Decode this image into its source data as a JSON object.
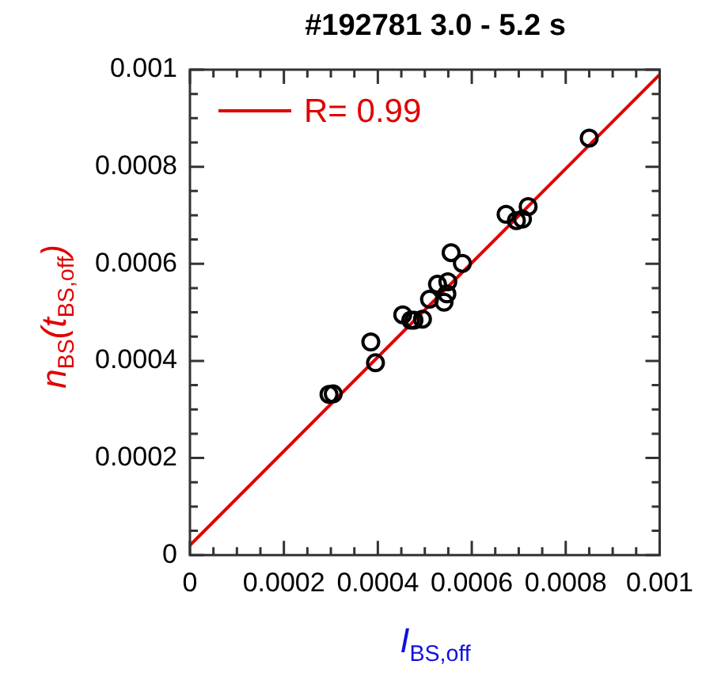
{
  "chart_data": {
    "type": "scatter",
    "title": "#192781 3.0 - 5.2 s",
    "xlabel": "I$_{BS,off}$",
    "ylabel": "n$_{BS}$(t$_{BS,off}$)",
    "xlim": [
      0,
      0.001
    ],
    "ylim": [
      0,
      0.001
    ],
    "xticks": [
      0,
      {
        "value": 5e-05,
        "label": null
      },
      {
        "value": 0.0001,
        "label": null
      },
      {
        "value": 0.00015,
        "label": null
      },
      0.0002,
      {
        "value": 0.00025,
        "label": null
      },
      {
        "value": 0.0003,
        "label": null
      },
      {
        "value": 0.00035,
        "label": null
      },
      0.0004,
      {
        "value": 0.00045,
        "label": null
      },
      {
        "value": 0.0005,
        "label": null
      },
      {
        "value": 0.00055,
        "label": null
      },
      0.0006,
      {
        "value": 0.00065,
        "label": null
      },
      {
        "value": 0.0007,
        "label": null
      },
      {
        "value": 0.00075,
        "label": null
      },
      0.0008,
      {
        "value": 0.00085,
        "label": null
      },
      {
        "value": 0.0009,
        "label": null
      },
      {
        "value": 0.00095,
        "label": null
      },
      0.001
    ],
    "yticks": [
      0,
      {
        "value": 5e-05,
        "label": null
      },
      {
        "value": 0.0001,
        "label": null
      },
      {
        "value": 0.00015,
        "label": null
      },
      0.0002,
      {
        "value": 0.00025,
        "label": null
      },
      {
        "value": 0.0003,
        "label": null
      },
      {
        "value": 0.00035,
        "label": null
      },
      0.0004,
      {
        "value": 0.00045,
        "label": null
      },
      {
        "value": 0.0005,
        "label": null
      },
      {
        "value": 0.00055,
        "label": null
      },
      0.0006,
      {
        "value": 0.00065,
        "label": null
      },
      {
        "value": 0.0007,
        "label": null
      },
      {
        "value": 0.00075,
        "label": null
      },
      0.0008,
      {
        "value": 0.00085,
        "label": null
      },
      {
        "value": 0.0009,
        "label": null
      },
      {
        "value": 0.00095,
        "label": null
      },
      0.001
    ],
    "grid": false,
    "legend": "top left",
    "series": [
      {
        "type": "scatter",
        "marker": "circle",
        "color": "#000000",
        "x": [
          0.000296,
          0.000305,
          0.000385,
          0.000395,
          0.000453,
          0.00047,
          0.000477,
          0.000495,
          0.00051,
          0.000527,
          0.000541,
          0.000547,
          0.000549,
          0.000556,
          0.00058,
          0.000673,
          0.000695,
          0.000708,
          0.00072,
          0.00085
        ],
        "values": [
          0.000331,
          0.000332,
          0.000439,
          0.000396,
          0.000495,
          0.000484,
          0.000484,
          0.000486,
          0.000527,
          0.000558,
          0.000521,
          0.000538,
          0.000563,
          0.000623,
          0.000601,
          0.000702,
          0.000689,
          0.000692,
          0.000718,
          0.000859
        ]
      },
      {
        "type": "line",
        "name": "R= 0.99",
        "color": "#e00000",
        "x": [
          0,
          0.001
        ],
        "values": [
          2e-05,
          0.00099
        ]
      }
    ]
  }
}
